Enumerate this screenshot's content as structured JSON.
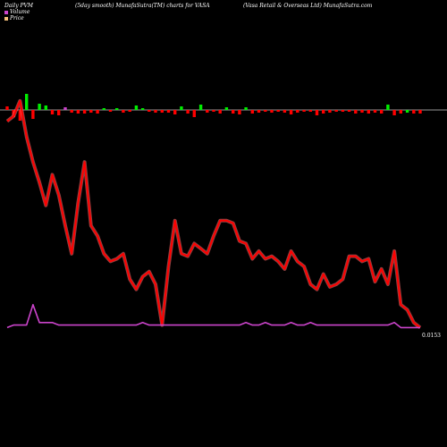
{
  "header": {
    "left": "Daily PVM",
    "middle": "(5day smooth) MunafaSutra(TM) charts for VASA",
    "right": "(Vasa  Retail & Overseas  Ltd) MunafaSutra.com"
  },
  "legend": {
    "items": [
      {
        "label": "Volume",
        "color": "#cc44cc"
      },
      {
        "label": "Price",
        "color": "#f4c07a"
      }
    ]
  },
  "colors": {
    "background": "#000000",
    "price_line": "#ff0000",
    "pvm_line": "#cc44cc",
    "bar_up": "#00ee00",
    "bar_down": "#ff0000",
    "bar_flat": "#cc44cc",
    "baseline": "#cccccc"
  },
  "chart_data": {
    "type": "line",
    "last_value_label": "0.0153",
    "price": [
      84,
      86,
      92,
      78,
      68,
      60,
      51,
      63,
      55,
      43,
      32,
      52,
      68,
      43,
      39,
      32,
      29,
      30,
      32,
      22,
      18,
      23,
      25,
      20,
      4,
      27,
      45,
      32,
      31,
      36,
      34,
      32,
      39,
      45,
      45,
      44,
      37,
      36,
      30,
      33,
      30,
      31,
      29,
      26,
      33,
      29,
      27,
      20,
      18,
      24,
      19,
      20,
      22,
      31,
      31,
      29,
      30,
      21,
      26,
      20,
      33,
      12,
      10,
      5,
      3
    ],
    "pvm": [
      3,
      4,
      4,
      4,
      12,
      5,
      5,
      5,
      4,
      4,
      4,
      4,
      4,
      4,
      4,
      4,
      4,
      4,
      4,
      4,
      4,
      5,
      4,
      4,
      4,
      4,
      4,
      4,
      4,
      4,
      4,
      4,
      4,
      4,
      4,
      4,
      4,
      5,
      4,
      4,
      5,
      4,
      4,
      4,
      5,
      4,
      4,
      5,
      4,
      4,
      4,
      4,
      4,
      4,
      4,
      4,
      4,
      4,
      4,
      4,
      5,
      3,
      3,
      3,
      3
    ],
    "volume_bars": [
      4,
      -8,
      -12,
      18,
      -10,
      7,
      5,
      -5,
      -6,
      3,
      -3,
      -4,
      -4,
      -3,
      -4,
      2,
      -2,
      2,
      -3,
      -2,
      5,
      2,
      -2,
      -3,
      -3,
      -3,
      -5,
      4,
      -4,
      -8,
      6,
      -3,
      -2,
      -4,
      3,
      -4,
      -5,
      3,
      -4,
      -3,
      -2,
      -3,
      -2,
      -3,
      -5,
      -3,
      -2,
      -2,
      -6,
      -4,
      -3,
      -2,
      -2,
      -2,
      -4,
      -3,
      -4,
      -3,
      -4,
      6,
      -6,
      -4,
      -3,
      -4,
      -4
    ],
    "volume_dir": [
      "down",
      "down",
      "down",
      "up",
      "down",
      "up",
      "up",
      "down",
      "down",
      "flat",
      "down",
      "down",
      "down",
      "down",
      "down",
      "up",
      "down",
      "up",
      "down",
      "down",
      "up",
      "up",
      "down",
      "down",
      "down",
      "down",
      "down",
      "up",
      "down",
      "down",
      "up",
      "down",
      "down",
      "down",
      "up",
      "down",
      "down",
      "up",
      "down",
      "down",
      "down",
      "down",
      "down",
      "down",
      "down",
      "down",
      "down",
      "down",
      "down",
      "down",
      "down",
      "down",
      "down",
      "down",
      "down",
      "down",
      "down",
      "down",
      "down",
      "up",
      "down",
      "down",
      "up",
      "down",
      "down"
    ],
    "grid": false
  }
}
